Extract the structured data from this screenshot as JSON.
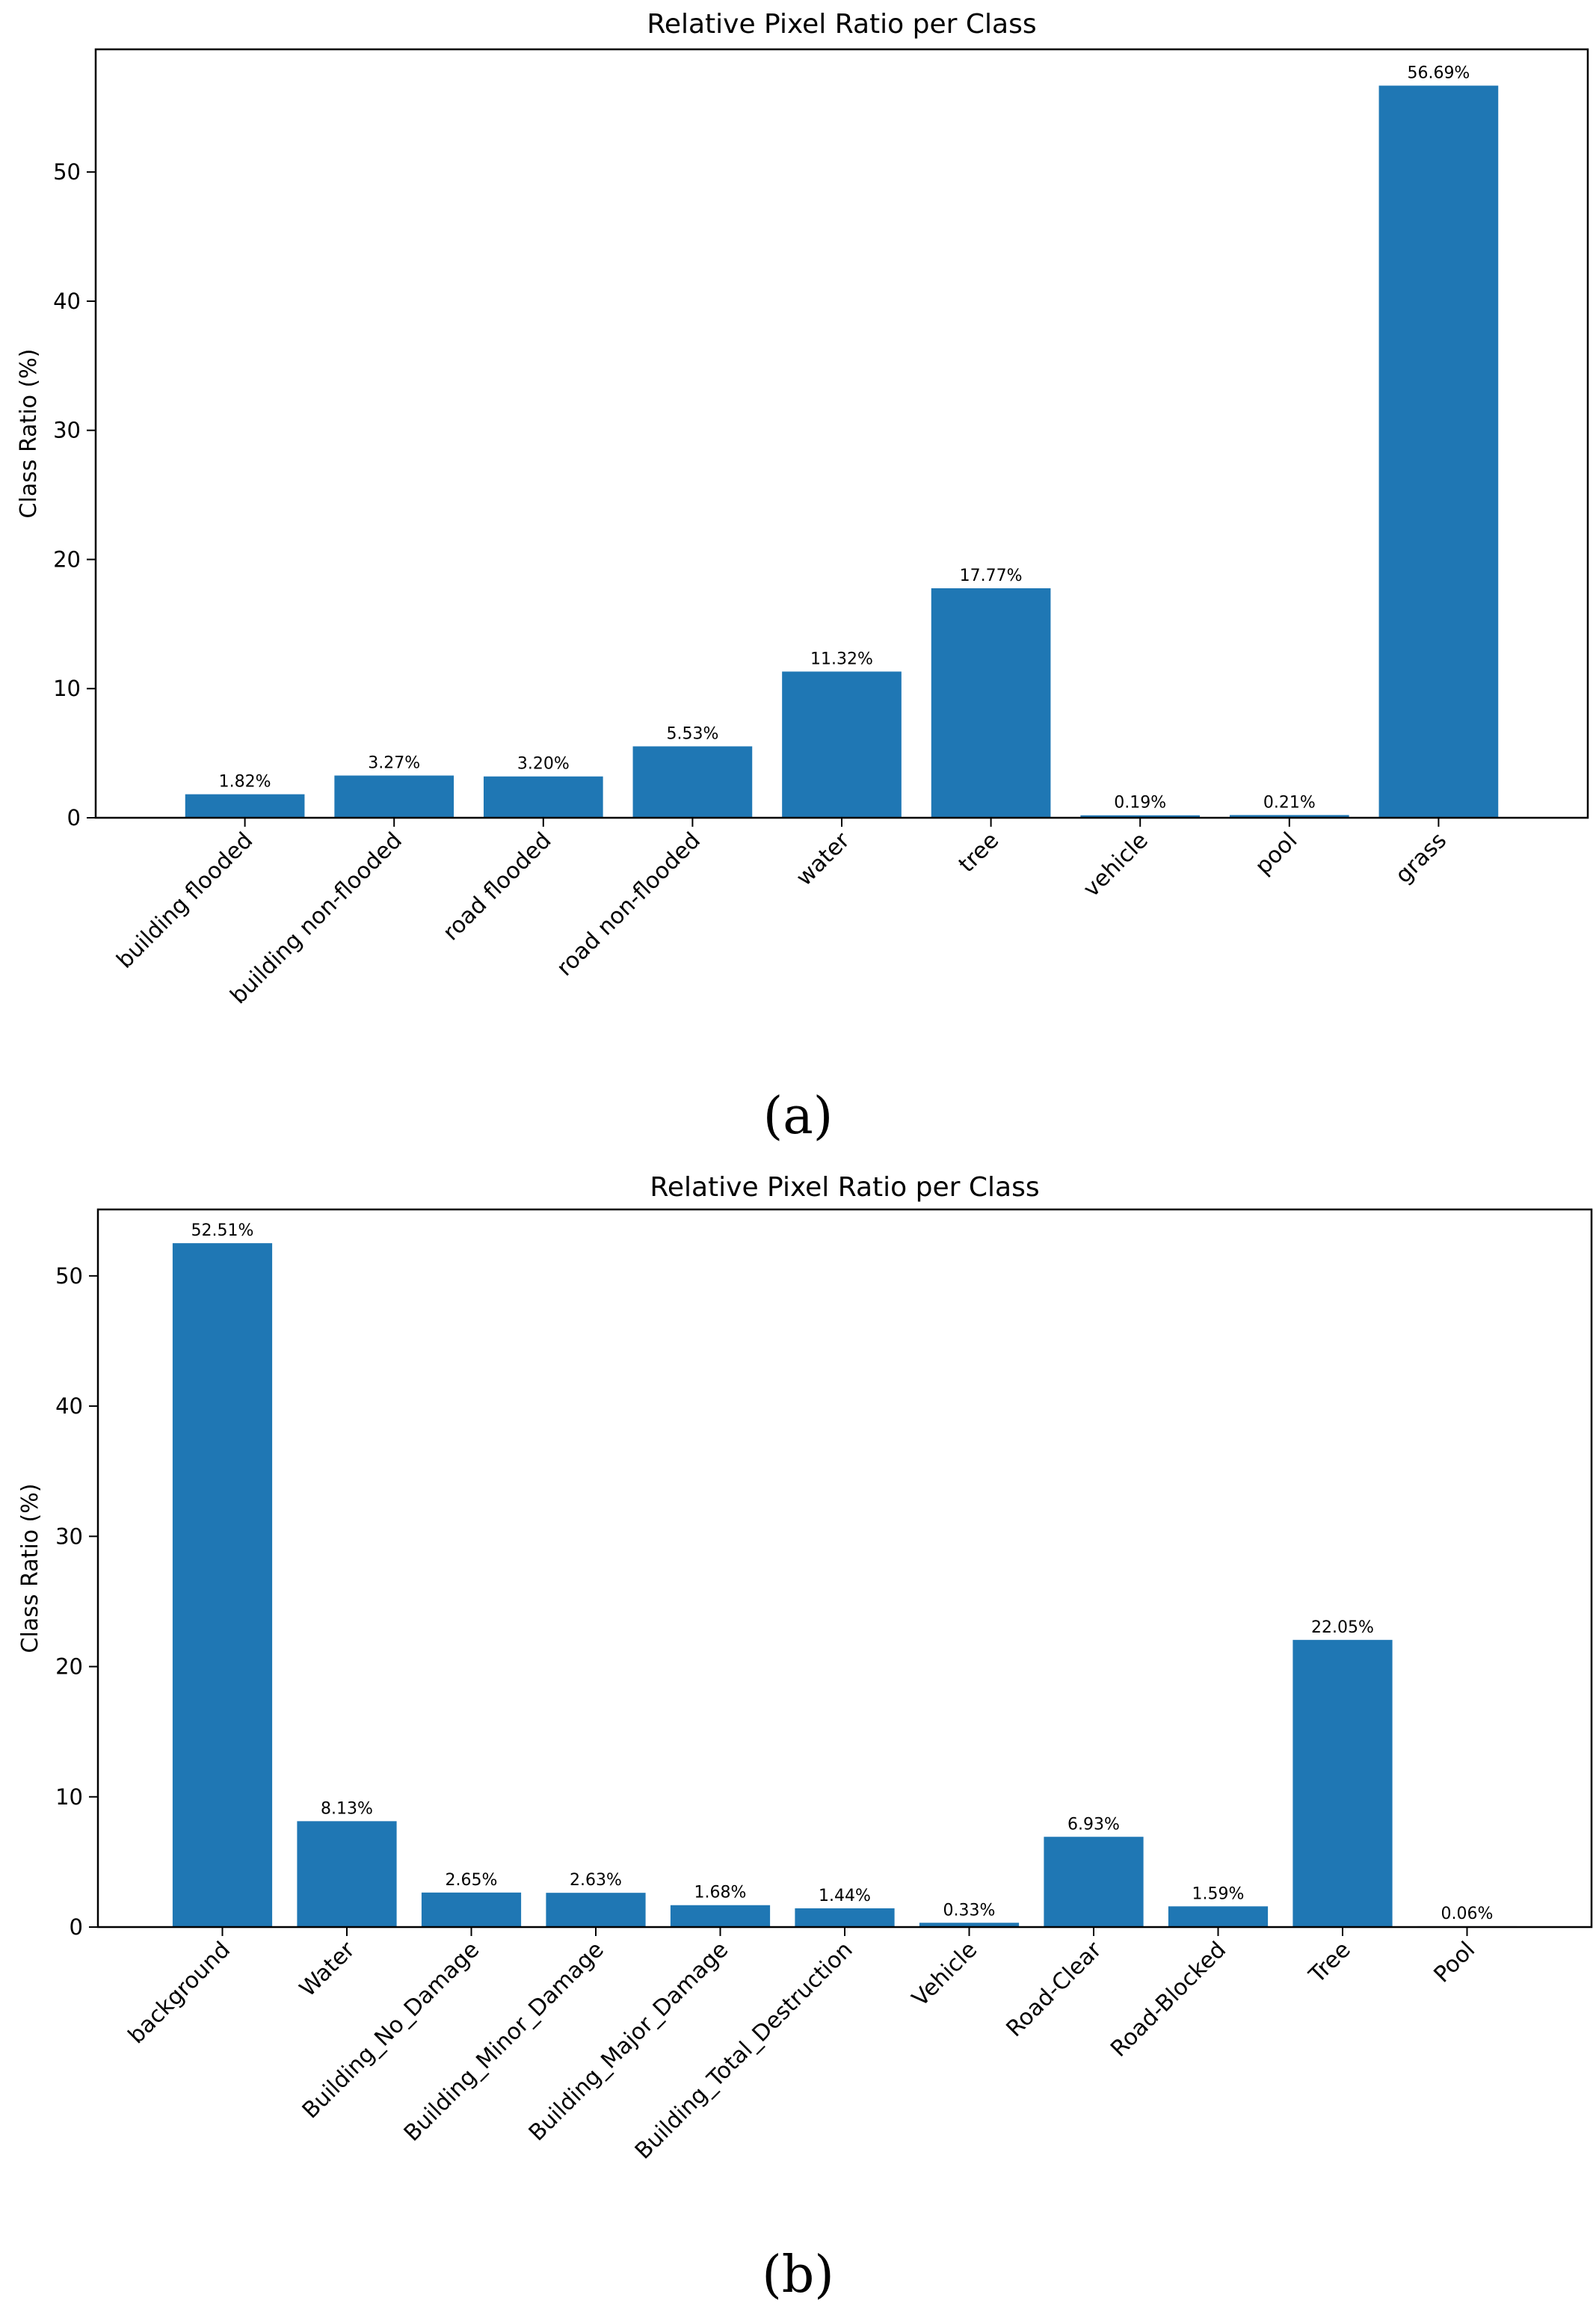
{
  "colors": {
    "bar": "#1f77b4",
    "axis": "#000000"
  },
  "panels": {
    "a": {
      "label": "(a)"
    },
    "b": {
      "label": "(b)"
    }
  },
  "chart_data": [
    {
      "type": "bar",
      "title": "Relative Pixel Ratio per Class",
      "xlabel": "",
      "ylabel": "Class Ratio (%)",
      "ylim": [
        0,
        59.5
      ],
      "yticks": [
        0,
        10,
        20,
        30,
        40,
        50
      ],
      "grid": false,
      "categories": [
        "building flooded",
        "building non-flooded",
        "road flooded",
        "road non-flooded",
        "water",
        "tree",
        "vehicle",
        "pool",
        "grass"
      ],
      "values": [
        1.82,
        3.27,
        3.2,
        5.53,
        11.32,
        17.77,
        0.19,
        0.21,
        56.69
      ],
      "data_labels": [
        "1.82%",
        "3.27%",
        "3.20%",
        "5.53%",
        "11.32%",
        "17.77%",
        "0.19%",
        "0.21%",
        "56.69%"
      ]
    },
    {
      "type": "bar",
      "title": "Relative Pixel Ratio per Class",
      "xlabel": "",
      "ylabel": "Class Ratio (%)",
      "ylim": [
        0,
        55.1
      ],
      "yticks": [
        0,
        10,
        20,
        30,
        40,
        50
      ],
      "grid": false,
      "categories": [
        "background",
        "Water",
        "Building_No_Damage",
        "Building_Minor_Damage",
        "Building_Major_Damage",
        "Building_Total_Destruction",
        "Vehicle",
        "Road-Clear",
        "Road-Blocked",
        "Tree",
        "Pool"
      ],
      "values": [
        52.51,
        8.13,
        2.65,
        2.63,
        1.68,
        1.44,
        0.33,
        6.93,
        1.59,
        22.05,
        0.06
      ],
      "data_labels": [
        "52.51%",
        "8.13%",
        "2.65%",
        "2.63%",
        "1.68%",
        "1.44%",
        "0.33%",
        "6.93%",
        "1.59%",
        "22.05%",
        "0.06%"
      ]
    }
  ]
}
